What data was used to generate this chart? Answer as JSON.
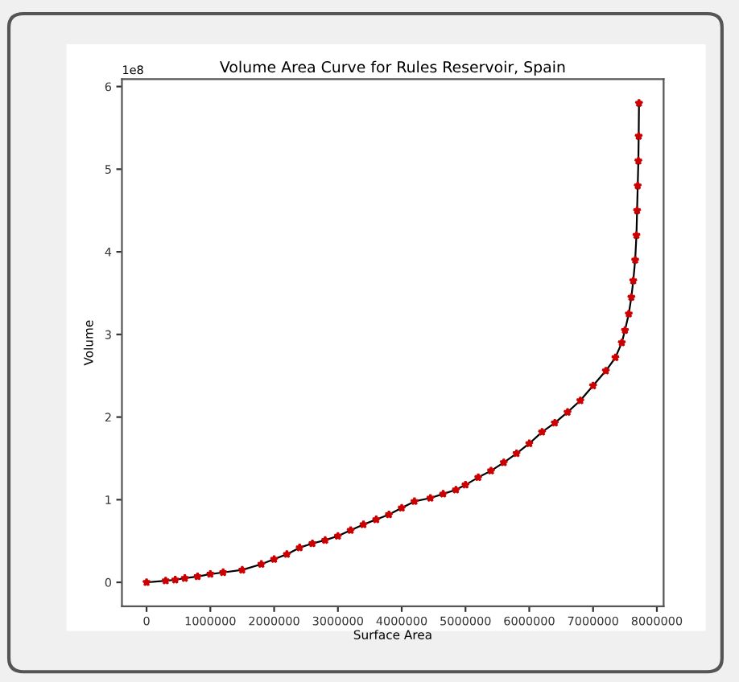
{
  "chart_data": {
    "type": "line",
    "title": "Volume Area Curve for Rules Reservoir, Spain",
    "xlabel": "Surface Area",
    "ylabel": "Volume",
    "annotations": [
      "1e8"
    ],
    "series": [
      {
        "color": "#cc0000",
        "x": [
          0,
          300000,
          450000,
          600000,
          800000,
          1000000,
          1200000,
          1500000,
          1800000,
          2000000,
          2200000,
          2400000,
          2600000,
          2800000,
          3000000,
          3200000,
          3400000,
          3600000,
          3800000,
          4000000,
          4200000,
          4450000,
          4650000,
          4850000,
          5000000,
          5200000,
          5400000,
          5600000,
          5800000,
          6000000,
          6200000,
          6400000,
          6600000,
          6800000,
          7000000,
          7200000,
          7350000,
          7450000,
          7500000,
          7560000,
          7600000,
          7630000,
          7660000,
          7680000,
          7690000,
          7700000,
          7710000,
          7715000,
          7720000
        ],
        "values": [
          0,
          0.02,
          0.03,
          0.05,
          0.07,
          0.1,
          0.12,
          0.15,
          0.22,
          0.28,
          0.34,
          0.42,
          0.47,
          0.51,
          0.56,
          0.63,
          0.7,
          0.76,
          0.82,
          0.9,
          0.98,
          1.02,
          1.07,
          1.12,
          1.18,
          1.27,
          1.35,
          1.45,
          1.56,
          1.68,
          1.82,
          1.93,
          2.06,
          2.2,
          2.38,
          2.56,
          2.72,
          2.9,
          3.05,
          3.25,
          3.45,
          3.65,
          3.9,
          4.2,
          4.5,
          4.8,
          5.1,
          5.4,
          5.8
        ]
      }
    ],
    "marker": "star",
    "xlim": [
      -386000,
      8106000
    ],
    "ylim": [
      -0.29,
      6.09
    ],
    "xticks": [
      0,
      1000000,
      2000000,
      3000000,
      4000000,
      5000000,
      6000000,
      7000000,
      8000000
    ],
    "yticks": [
      0,
      1,
      2,
      3,
      4,
      5,
      6
    ]
  }
}
